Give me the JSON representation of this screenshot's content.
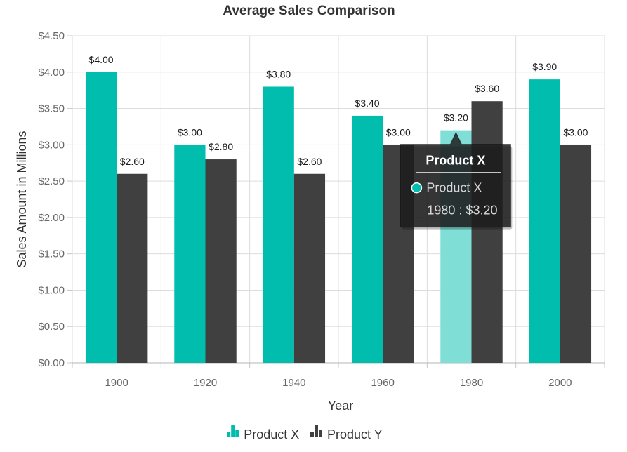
{
  "chart_data": {
    "type": "bar",
    "title": "Average Sales Comparison",
    "xlabel": "Year",
    "ylabel": "Sales Amount in Millions",
    "categories": [
      "1900",
      "1920",
      "1940",
      "1960",
      "1980",
      "2000"
    ],
    "ylim": [
      0,
      4.5
    ],
    "yticks": [
      0,
      0.5,
      1.0,
      1.5,
      2.0,
      2.5,
      3.0,
      3.5,
      4.0,
      4.5
    ],
    "ytick_labels": [
      "$0.00",
      "$0.50",
      "$1.00",
      "$1.50",
      "$2.00",
      "$2.50",
      "$3.00",
      "$3.50",
      "$4.00",
      "$4.50"
    ],
    "grid": true,
    "legend_position": "bottom-center",
    "series": [
      {
        "name": "Product X",
        "color": "#00bdae",
        "values": [
          4.0,
          3.0,
          3.8,
          3.4,
          3.2,
          3.9
        ],
        "labels": [
          "$4.00",
          "$3.00",
          "$3.80",
          "$3.40",
          "$3.20",
          "$3.90"
        ]
      },
      {
        "name": "Product Y",
        "color": "#404041",
        "values": [
          2.6,
          2.8,
          2.6,
          3.0,
          3.6,
          3.0
        ],
        "labels": [
          "$2.60",
          "$2.80",
          "$2.60",
          "$3.00",
          "$3.60",
          "$3.00"
        ]
      }
    ],
    "highlighted_point": {
      "series": 0,
      "index": 4,
      "color": "#7fded6"
    },
    "tooltip": {
      "title": "Product X",
      "series_name": "Product X",
      "value_text": "1980 : $3.20",
      "marker_color": "#00bdae"
    }
  }
}
